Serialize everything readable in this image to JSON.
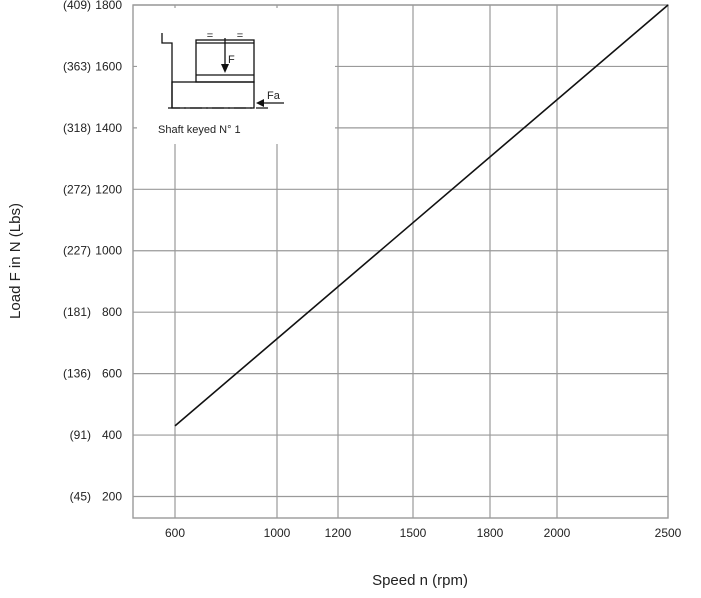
{
  "chart_data": {
    "type": "line",
    "title": "",
    "xlabel": "Speed n (rpm)",
    "ylabel": "Load F in N (Lbs)",
    "x_ticks": [
      "600",
      "1000",
      "1200",
      "1500",
      "1800",
      "2000",
      "2500"
    ],
    "y_ticks": [
      {
        "value": 200,
        "label": "(45)",
        "n_label": "200"
      },
      {
        "value": 400,
        "label": "(91)",
        "n_label": "400"
      },
      {
        "value": 600,
        "label": "(136)",
        "n_label": "600"
      },
      {
        "value": 800,
        "label": "(181)",
        "n_label": "800"
      },
      {
        "value": 1000,
        "label": "(227)",
        "n_label": "1000"
      },
      {
        "value": 1200,
        "label": "(272)",
        "n_label": "1200"
      },
      {
        "value": 1400,
        "label": "(318)",
        "n_label": "1400"
      },
      {
        "value": 1600,
        "label": "(363)",
        "n_label": "1600"
      },
      {
        "value": 1800,
        "label": "(409)",
        "n_label": "1800"
      }
    ],
    "ylim": [
      130,
      1800
    ],
    "grid": true,
    "series": [
      {
        "x": [
          600,
          2500
        ],
        "y": [
          430,
          1800
        ]
      }
    ],
    "colors": {
      "line": "#111111",
      "grid": "#9a9a9a"
    }
  },
  "inset": {
    "caption": "Shaft keyed N° 1",
    "force_label": "F",
    "axial_force_label": "Fa",
    "equal_mark_1": "=",
    "equal_mark_2": "="
  }
}
